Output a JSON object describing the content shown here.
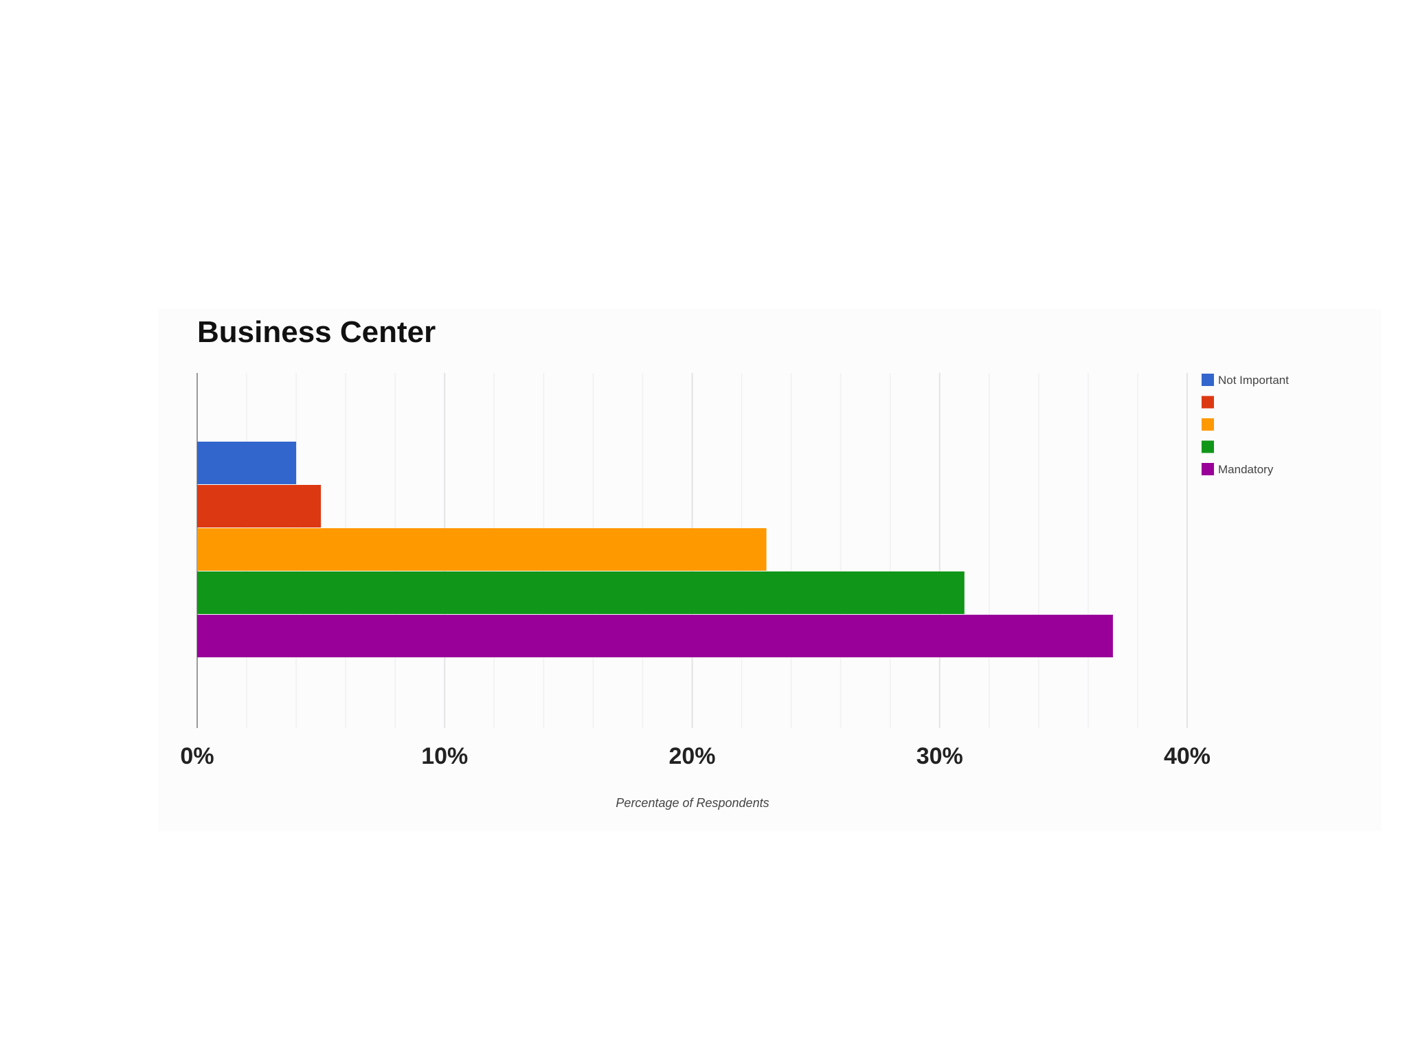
{
  "chart_data": {
    "type": "bar",
    "orientation": "horizontal",
    "title": "Business Center",
    "xlabel": "Percentage of Respondents",
    "ylabel": "",
    "xlim": [
      0,
      40
    ],
    "x_ticks": [
      "0%",
      "10%",
      "20%",
      "30%",
      "40%"
    ],
    "grid": true,
    "legend_position": "top-right",
    "series": [
      {
        "name": "Not Important",
        "value": 4,
        "color": "#3366cc"
      },
      {
        "name": "",
        "value": 5,
        "color": "#dc3912"
      },
      {
        "name": "",
        "value": 23,
        "color": "#ff9900"
      },
      {
        "name": "",
        "value": 31,
        "color": "#109618"
      },
      {
        "name": "Mandatory",
        "value": 37,
        "color": "#990099"
      }
    ]
  }
}
